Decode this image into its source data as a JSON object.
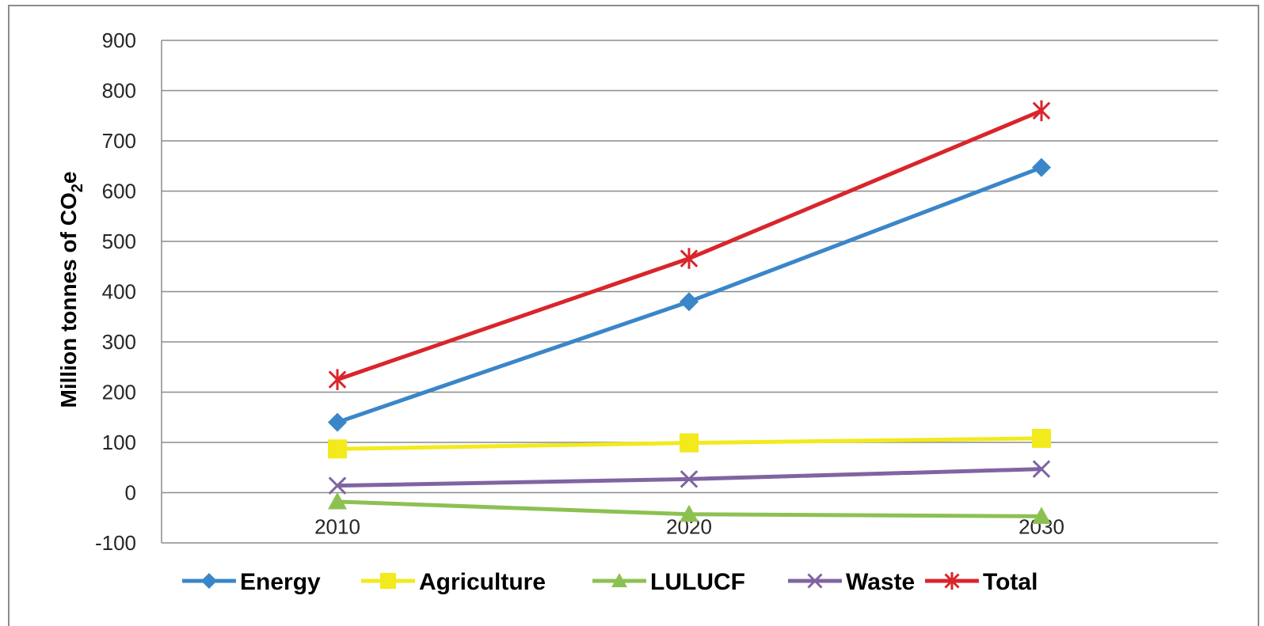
{
  "chart_data": {
    "type": "line",
    "categories": [
      "2010",
      "2020",
      "2030"
    ],
    "ylim": [
      -100,
      900
    ],
    "yticks": [
      900,
      800,
      700,
      600,
      500,
      400,
      300,
      200,
      100,
      0,
      -100
    ],
    "ylabel_prefix": "Million tonnes of CO",
    "ylabel_subscript": "2",
    "ylabel_suffix": "e",
    "xlabel": "",
    "grid": true,
    "legend_position": "bottom",
    "series": [
      {
        "name": "Energy",
        "values": [
          140,
          380,
          647
        ],
        "color": "#3a86c8",
        "marker": "diamond"
      },
      {
        "name": "Agriculture",
        "values": [
          87,
          99,
          108
        ],
        "color": "#f2ea1c",
        "marker": "square"
      },
      {
        "name": "LULUCF",
        "values": [
          -18,
          -43,
          -47
        ],
        "color": "#8cc152",
        "marker": "triangle"
      },
      {
        "name": "Waste",
        "values": [
          14,
          27,
          47
        ],
        "color": "#8064a2",
        "marker": "x"
      },
      {
        "name": "Total",
        "values": [
          225,
          466,
          760
        ],
        "color": "#d9252b",
        "marker": "star"
      }
    ]
  }
}
